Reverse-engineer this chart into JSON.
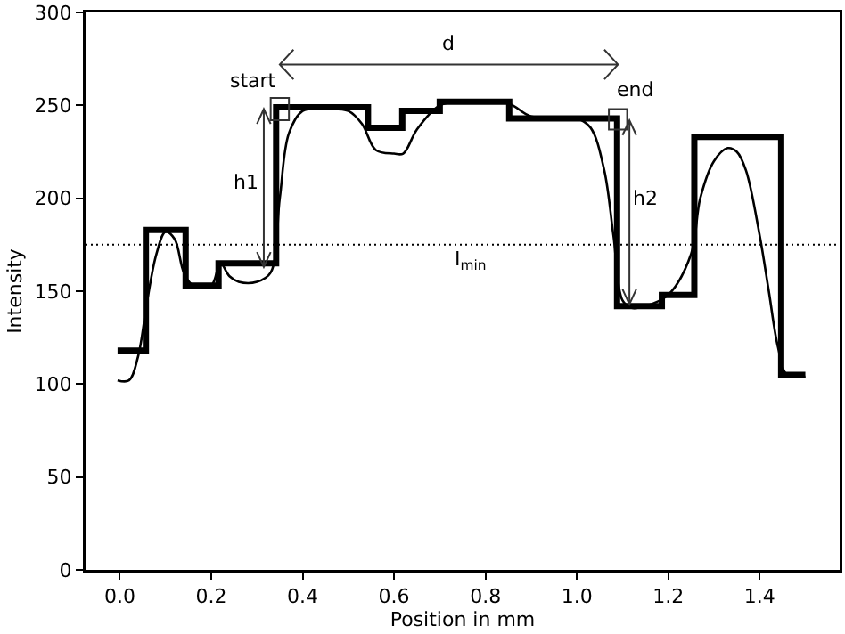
{
  "chart_data": {
    "type": "line",
    "xlabel": "Position in mm",
    "ylabel": "Intensity",
    "xlim": [
      -0.075,
      1.575
    ],
    "ylim": [
      0,
      300
    ],
    "xticks": [
      {
        "value": 0,
        "label": "0.0"
      },
      {
        "value": 0.2,
        "label": "0.2"
      },
      {
        "value": 0.4,
        "label": "0.4"
      },
      {
        "value": 0.6,
        "label": "0.6"
      },
      {
        "value": 0.8,
        "label": "0.8"
      },
      {
        "value": 1,
        "label": "1.0"
      },
      {
        "value": 1.2,
        "label": "1.2"
      },
      {
        "value": 1.4,
        "label": "1.4"
      }
    ],
    "yticks": [
      0,
      50,
      100,
      150,
      200,
      250,
      300
    ],
    "grid": false,
    "marker": "none",
    "series": [
      {
        "color": "#000000",
        "line_style": "solid",
        "x": [
          -0.005,
          0.02,
          0.04,
          0.06,
          0.08,
          0.1,
          0.12,
          0.14,
          0.16,
          0.2,
          0.22,
          0.24,
          0.26,
          0.3,
          0.33,
          0.35,
          0.37,
          0.4,
          0.45,
          0.5,
          0.53,
          0.56,
          0.6,
          0.62,
          0.65,
          0.7,
          0.75,
          0.85,
          0.9,
          1.0,
          1.03,
          1.06,
          1.08,
          1.1,
          1.12,
          1.15,
          1.2,
          1.25,
          1.27,
          1.3,
          1.33,
          1.35,
          1.37,
          1.4,
          1.42,
          1.44,
          1.46,
          1.5
        ],
        "values": [
          102,
          102,
          115,
          145,
          170,
          182,
          178,
          160,
          153,
          153,
          165,
          158,
          155,
          155,
          160,
          200,
          235,
          247,
          248,
          247,
          240,
          226,
          224,
          224,
          237,
          250,
          252,
          251,
          244,
          243,
          238,
          215,
          180,
          145,
          141,
          142,
          148,
          170,
          200,
          220,
          227,
          225,
          215,
          180,
          150,
          120,
          105,
          104
        ]
      },
      {
        "type": "step",
        "color": "#000000",
        "line_style": "solid",
        "x": [
          -0.005,
          0.057,
          0.144,
          0.216,
          0.342,
          0.543,
          0.618,
          0.7,
          0.852,
          1.088,
          1.186,
          1.257,
          1.447,
          1.5
        ],
        "values": [
          118,
          183,
          153,
          165,
          249,
          238,
          247,
          252,
          243,
          142,
          148,
          233,
          105,
          105
        ]
      }
    ],
    "ref_lines": [
      {
        "axis": "y",
        "value": 175,
        "label": "I$_{min}$",
        "line_style": "dotted",
        "color": "#000000"
      }
    ],
    "annotations": [
      {
        "text": "start",
        "x": 0.342,
        "y": 249
      },
      {
        "text": "end",
        "x": 1.088,
        "y": 243
      },
      "h1",
      "h2",
      "d"
    ]
  }
}
